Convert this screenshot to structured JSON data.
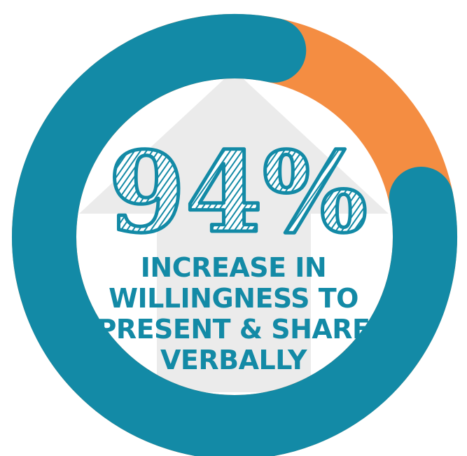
{
  "chart_data": {
    "type": "pie",
    "style": "donut",
    "slices": [
      {
        "label": "",
        "value": 94,
        "color": "#138aa6"
      },
      {
        "label": "",
        "value": 6,
        "color": "#f48d42"
      }
    ],
    "center_value": "94%",
    "center_lines": [
      "INCREASE IN",
      "WILLINGNESS TO",
      "PRESENT & SHARE",
      "VERBALLY"
    ]
  },
  "colors": {
    "primary": "#138aa6",
    "accent": "#f48d42",
    "arrow": "#ebebeb",
    "background": "#ffffff"
  },
  "icon": "up-arrow-icon"
}
